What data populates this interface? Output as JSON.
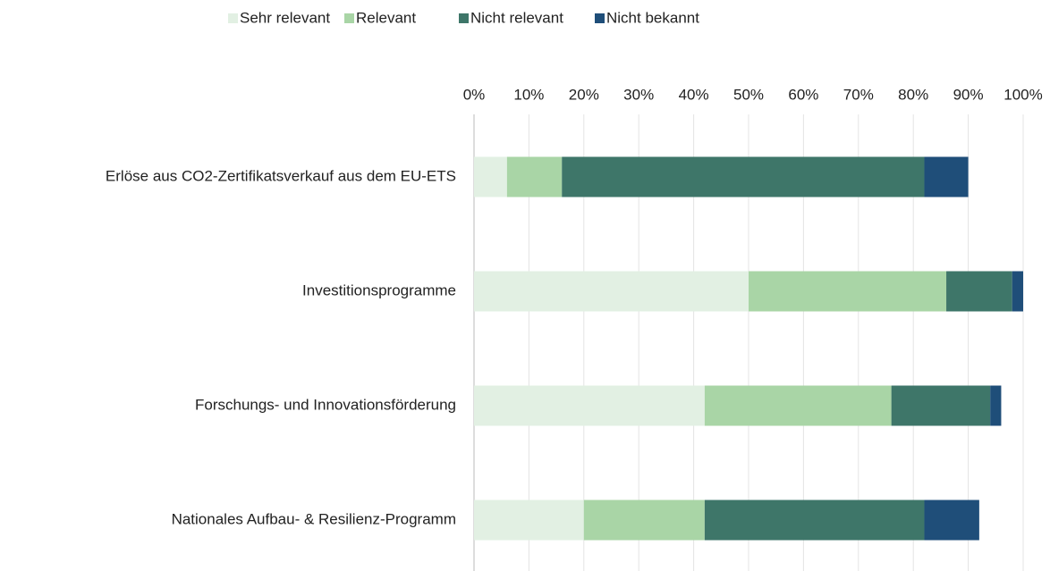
{
  "chart_data": {
    "type": "stacked_bar_horizontal",
    "categories": [
      "Erlöse aus CO2-Zertifikatsverkauf aus dem EU-ETS",
      "Investitionsprogramme",
      "Forschungs- und Innovationsförderung",
      "Nationales Aufbau- & Resilienz-Programm"
    ],
    "series": [
      {
        "name": "Sehr relevant",
        "color": "#e2f0e3",
        "values": [
          6,
          50,
          42,
          20
        ]
      },
      {
        "name": "Relevant",
        "color": "#a9d5a6",
        "values": [
          10,
          36,
          34,
          22
        ]
      },
      {
        "name": "Nicht relevant",
        "color": "#3e7669",
        "values": [
          66,
          12,
          18,
          40
        ]
      },
      {
        "name": "Nicht bekannt",
        "color": "#1f4e79",
        "values": [
          8,
          2,
          2,
          10
        ]
      }
    ],
    "xlim": [
      0,
      100
    ],
    "xticks": [
      {
        "value": 0,
        "label": "0%"
      },
      {
        "value": 10,
        "label": "10%"
      },
      {
        "value": 20,
        "label": "20%"
      },
      {
        "value": 30,
        "label": "30%"
      },
      {
        "value": 40,
        "label": "40%"
      },
      {
        "value": 50,
        "label": "50%"
      },
      {
        "value": 60,
        "label": "60%"
      },
      {
        "value": 70,
        "label": "70%"
      },
      {
        "value": 80,
        "label": "80%"
      },
      {
        "value": 90,
        "label": "90%"
      },
      {
        "value": 100,
        "label": "100%"
      }
    ],
    "grid": true,
    "legend": "top"
  }
}
